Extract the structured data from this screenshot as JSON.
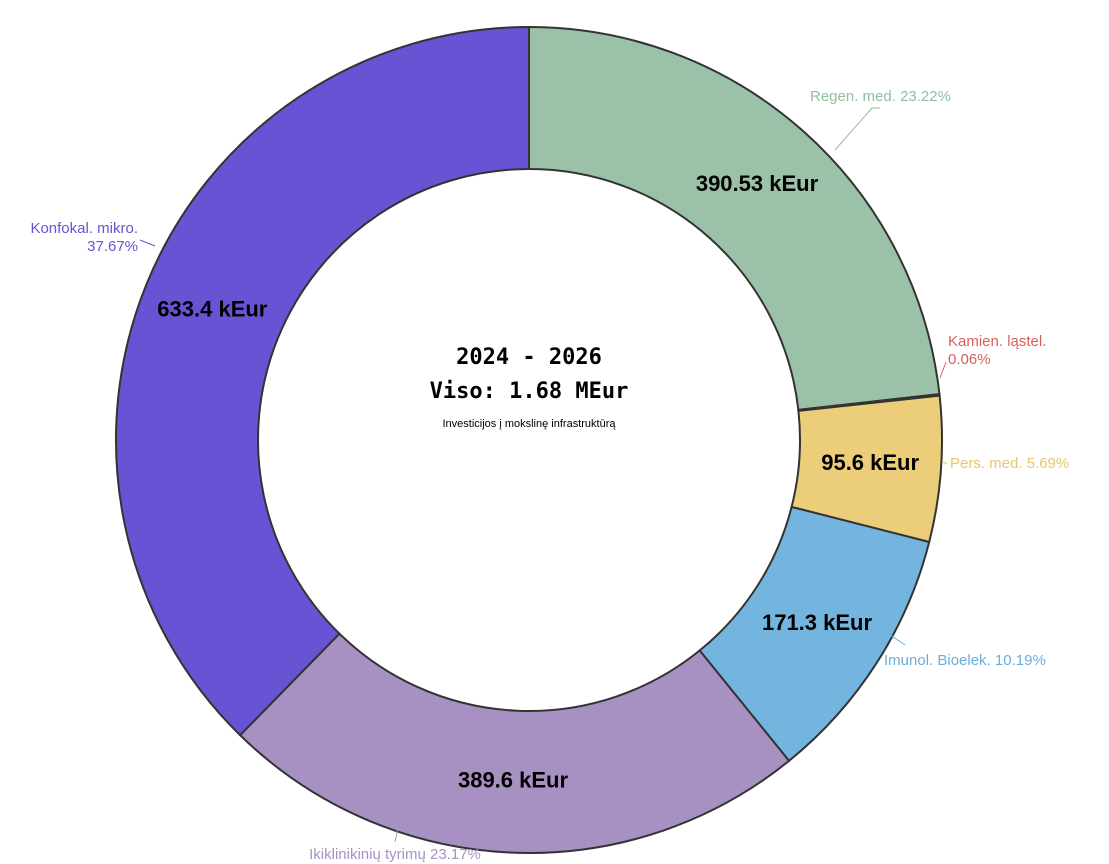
{
  "chart_data": {
    "type": "donut",
    "center_title": "2024 - 2026",
    "center_total": "Viso: 1.68 MEur",
    "center_subtitle": "Investicijos į mokslinę infrastruktūrą",
    "categories": [
      "Regen. med.",
      "Kamien. ląstel.",
      "Pers. med.",
      "Imunol. Bioelek.",
      "Ikiklinikinių tyrimų",
      "Konfokal. mikro."
    ],
    "values": [
      390.53,
      1.0,
      95.6,
      171.3,
      389.6,
      633.4
    ],
    "value_labels": [
      "390.53 kEur",
      null,
      "95.6 kEur",
      "171.3 kEur",
      "389.6 kEur",
      "633.4 kEur"
    ],
    "percent_labels": [
      "23.22%",
      "0.06%",
      "5.69%",
      "10.19%",
      "23.17%",
      "37.67%"
    ],
    "colors": [
      "#9bc2a8",
      "#d9605a",
      "#ebcd7a",
      "#74b5e0",
      "#a791c3",
      "#6853d4"
    ],
    "label_colors": [
      "#8fbf9f",
      "#d9605a",
      "#e8c66a",
      "#6aaede",
      "#a791c3",
      "#6853d4"
    ]
  }
}
